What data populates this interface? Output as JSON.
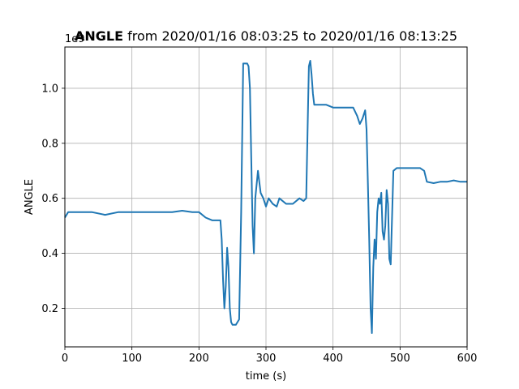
{
  "chart_data": {
    "type": "line",
    "title_bold": "ANGLE",
    "title_rest": " from 2020/01/16 08:03:25 to 2020/01/16 08:13:25",
    "xlabel": "time (s)",
    "ylabel": "ANGLE",
    "offset_label": "1e9",
    "xlim": [
      0,
      600
    ],
    "ylim": [
      0.06,
      1.15
    ],
    "xticks": [
      0,
      100,
      200,
      300,
      400,
      500,
      600
    ],
    "yticks": [
      0.2,
      0.4,
      0.6,
      0.8,
      1.0
    ],
    "xtick_labels": [
      "0",
      "100",
      "200",
      "300",
      "400",
      "500",
      "600"
    ],
    "ytick_labels": [
      "0.2",
      "0.4",
      "0.6",
      "0.8",
      "1.0"
    ],
    "grid": true,
    "color": "#1f77b4",
    "series": [
      {
        "x": [
          0,
          5,
          20,
          40,
          60,
          80,
          100,
          120,
          140,
          160,
          175,
          190,
          200,
          210,
          220,
          228,
          232,
          234,
          236,
          238,
          240,
          242,
          244,
          246,
          248,
          250,
          255,
          260,
          263,
          266,
          270,
          272,
          274,
          276,
          278,
          280,
          282,
          284,
          288,
          292,
          296,
          300,
          304,
          310,
          316,
          320,
          330,
          340,
          350,
          356,
          360,
          362,
          364,
          366,
          368,
          370,
          372,
          376,
          380,
          390,
          400,
          410,
          420,
          430,
          436,
          440,
          444,
          448,
          450,
          452,
          454,
          456,
          458,
          460,
          462,
          464,
          466,
          468,
          470,
          472,
          474,
          476,
          478,
          480,
          482,
          484,
          486,
          490,
          495,
          500,
          510,
          520,
          530,
          536,
          540,
          550,
          560,
          570,
          580,
          590,
          600
        ],
        "y": [
          0.53,
          0.55,
          0.55,
          0.55,
          0.54,
          0.55,
          0.55,
          0.55,
          0.55,
          0.55,
          0.555,
          0.55,
          0.55,
          0.53,
          0.52,
          0.52,
          0.52,
          0.45,
          0.3,
          0.2,
          0.28,
          0.42,
          0.35,
          0.2,
          0.15,
          0.14,
          0.14,
          0.16,
          0.55,
          1.09,
          1.09,
          1.09,
          1.08,
          1.0,
          0.75,
          0.5,
          0.4,
          0.6,
          0.7,
          0.62,
          0.6,
          0.57,
          0.6,
          0.58,
          0.57,
          0.6,
          0.58,
          0.58,
          0.6,
          0.59,
          0.6,
          0.85,
          1.08,
          1.1,
          1.05,
          0.98,
          0.94,
          0.94,
          0.94,
          0.94,
          0.93,
          0.93,
          0.93,
          0.93,
          0.9,
          0.87,
          0.89,
          0.92,
          0.85,
          0.65,
          0.45,
          0.2,
          0.11,
          0.35,
          0.45,
          0.38,
          0.55,
          0.6,
          0.58,
          0.62,
          0.48,
          0.45,
          0.5,
          0.63,
          0.58,
          0.38,
          0.36,
          0.7,
          0.71,
          0.71,
          0.71,
          0.71,
          0.71,
          0.7,
          0.66,
          0.655,
          0.66,
          0.66,
          0.665,
          0.66,
          0.66
        ]
      }
    ]
  }
}
